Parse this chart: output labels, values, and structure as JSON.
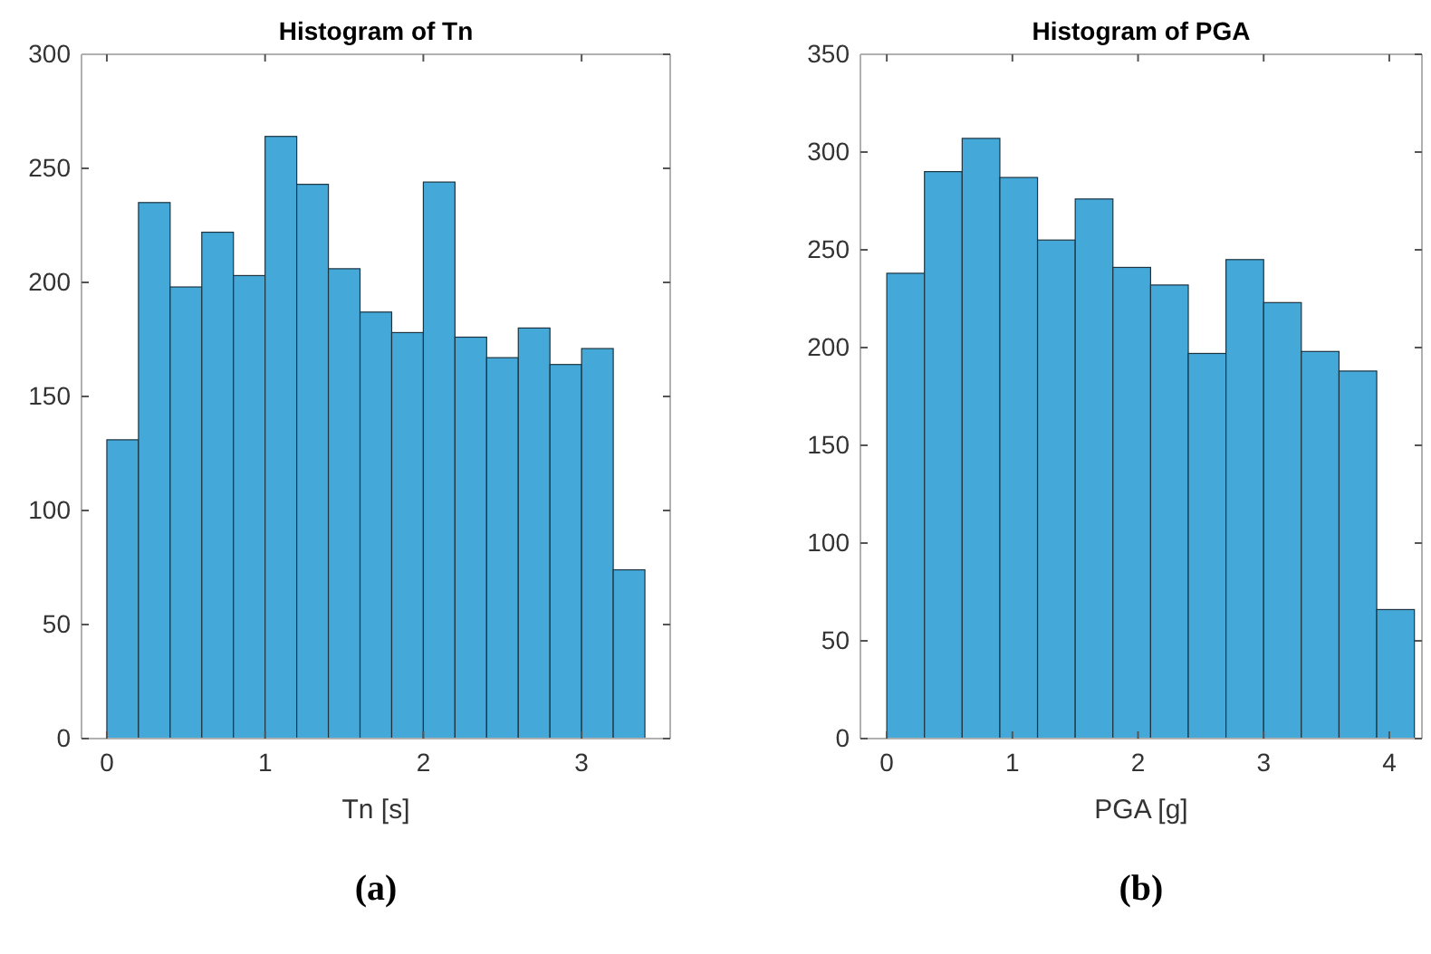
{
  "chart_data": [
    {
      "type": "histogram",
      "title": "Histogram of Tn",
      "xlabel": "Tn [s]",
      "color": "#44a8d8",
      "bins": [
        0,
        0.2,
        0.4,
        0.6,
        0.8,
        1.0,
        1.2,
        1.4,
        1.6,
        1.8,
        2.0,
        2.2,
        2.4,
        2.6,
        2.8,
        3.0,
        3.2,
        3.4
      ],
      "values": [
        131,
        235,
        198,
        222,
        203,
        264,
        243,
        206,
        187,
        178,
        244,
        176,
        167,
        180,
        164,
        171,
        74
      ],
      "xlim": [
        -0.16,
        3.56
      ],
      "xticks": [
        0,
        1,
        2,
        3
      ],
      "ylim": [
        0,
        300
      ],
      "yticks": [
        0,
        50,
        100,
        150,
        200,
        250,
        300
      ],
      "grid": false,
      "annotations": [
        "(a)"
      ]
    },
    {
      "type": "histogram",
      "title": "Histogram of PGA",
      "xlabel": "PGA [g]",
      "color": "#44a8d8",
      "bins": [
        0,
        0.3,
        0.6,
        0.9,
        1.2,
        1.5,
        1.8,
        2.1,
        2.4,
        2.7,
        3.0,
        3.3,
        3.6,
        3.9,
        4.2
      ],
      "values": [
        238,
        290,
        307,
        287,
        255,
        276,
        241,
        232,
        197,
        245,
        223,
        198,
        188,
        66
      ],
      "xlim": [
        -0.21,
        4.26
      ],
      "xticks": [
        0,
        1,
        2,
        3,
        4
      ],
      "ylim": [
        0,
        350
      ],
      "yticks": [
        0,
        50,
        100,
        150,
        200,
        250,
        300,
        350
      ],
      "grid": false,
      "annotations": [
        "(b)"
      ]
    }
  ]
}
